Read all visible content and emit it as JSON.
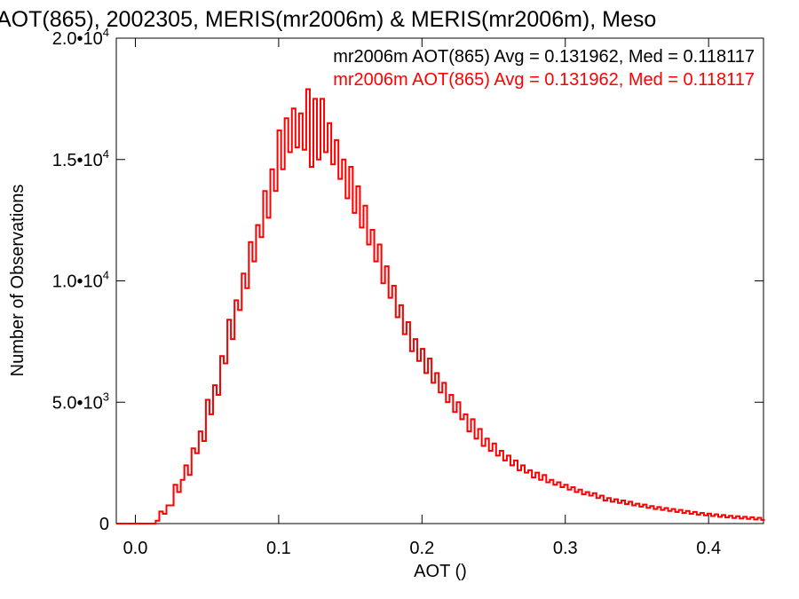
{
  "colors": {
    "series_black": "#000000",
    "series_red": "#ff0000",
    "axes": "#000000"
  },
  "chart_data": {
    "type": "histogram",
    "title": "AOT(865), 2002305, MERIS(mr2006m) & MERIS(mr2006m), Meso",
    "xlabel": "AOT ()",
    "ylabel": "Number of Observations",
    "xlim": [
      -0.0133,
      0.4383
    ],
    "ylim": [
      0,
      20000
    ],
    "grid": false,
    "bin_width": 0.0025,
    "first_bin_start": -0.0133,
    "x_ticks": [
      {
        "value": 0.0,
        "label": "0.0"
      },
      {
        "value": 0.1,
        "label": "0.1"
      },
      {
        "value": 0.2,
        "label": "0.2"
      },
      {
        "value": 0.3,
        "label": "0.3"
      },
      {
        "value": 0.4,
        "label": "0.4"
      }
    ],
    "y_ticks": [
      {
        "value": 0,
        "mant": "0",
        "exp": ""
      },
      {
        "value": 5000,
        "mant": "5.0•10",
        "exp": "3"
      },
      {
        "value": 10000,
        "mant": "1.0•10",
        "exp": "4"
      },
      {
        "value": 15000,
        "mant": "1.5•10",
        "exp": "4"
      },
      {
        "value": 20000,
        "mant": "2.0•10",
        "exp": "4"
      }
    ],
    "legend_placement": "top-right",
    "series": [
      {
        "name": "mr2006m AOT(865) Avg = 0.131962, Med = 0.118117",
        "color": "#000000",
        "values": [
          0,
          0,
          0,
          0,
          0,
          0,
          0,
          0,
          0,
          0,
          0,
          120,
          500,
          400,
          750,
          750,
          1600,
          1300,
          1800,
          2400,
          2000,
          3100,
          2900,
          3800,
          3400,
          5100,
          4500,
          5700,
          5300,
          6900,
          6600,
          8400,
          7600,
          9200,
          8800,
          10300,
          9700,
          11600,
          10800,
          12300,
          11800,
          13700,
          12600,
          14600,
          13700,
          16200,
          14600,
          16700,
          15300,
          17100,
          15500,
          16900,
          15400,
          17900,
          14700,
          17500,
          15000,
          17500,
          15300,
          16500,
          14800,
          15800,
          14200,
          15000,
          13400,
          14700,
          12800,
          13900,
          12200,
          13100,
          11500,
          12100,
          10800,
          11500,
          9900,
          10600,
          9300,
          9800,
          8500,
          9000,
          7800,
          8300,
          7100,
          7600,
          6700,
          7200,
          6200,
          6800,
          5800,
          6200,
          5400,
          5800,
          5000,
          5300,
          4600,
          5000,
          4300,
          4500,
          3800,
          4300,
          3500,
          3900,
          3200,
          3500,
          3000,
          3300,
          2800,
          3000,
          2600,
          2800,
          2400,
          2600,
          2200,
          2400,
          2100,
          2200,
          1900,
          2100,
          1800,
          2000,
          1700,
          1800,
          1600,
          1700,
          1500,
          1600,
          1400,
          1500,
          1300,
          1400,
          1200,
          1300,
          1150,
          1250,
          1050,
          1150,
          950,
          1050,
          900,
          1000,
          850,
          950,
          800,
          900,
          750,
          820,
          700,
          780,
          650,
          720,
          600,
          680,
          560,
          640,
          520,
          600,
          480,
          560,
          440,
          520,
          400,
          480,
          370,
          440,
          340,
          410,
          310,
          380,
          280,
          350,
          250,
          320,
          230,
          300,
          210,
          280,
          190,
          260,
          170,
          240,
          150
        ]
      },
      {
        "name": "mr2006m AOT(865) Avg = 0.131962, Med = 0.118117",
        "color": "#ff0000",
        "values": [
          0,
          0,
          0,
          0,
          0,
          0,
          0,
          0,
          0,
          0,
          0,
          120,
          500,
          400,
          750,
          750,
          1600,
          1300,
          1800,
          2400,
          2000,
          3100,
          2900,
          3800,
          3400,
          5100,
          4500,
          5700,
          5300,
          6900,
          6600,
          8400,
          7600,
          9200,
          8800,
          10300,
          9700,
          11600,
          10800,
          12300,
          11800,
          13700,
          12600,
          14600,
          13700,
          16200,
          14600,
          16700,
          15300,
          17100,
          15500,
          16900,
          15400,
          17900,
          14700,
          17500,
          15000,
          17500,
          15300,
          16500,
          14800,
          15800,
          14200,
          15000,
          13400,
          14700,
          12800,
          13900,
          12200,
          13100,
          11500,
          12100,
          10800,
          11500,
          9900,
          10600,
          9300,
          9800,
          8500,
          9000,
          7800,
          8300,
          7100,
          7600,
          6700,
          7200,
          6200,
          6800,
          5800,
          6200,
          5400,
          5800,
          5000,
          5300,
          4600,
          5000,
          4300,
          4500,
          3800,
          4300,
          3500,
          3900,
          3200,
          3500,
          3000,
          3300,
          2800,
          3000,
          2600,
          2800,
          2400,
          2600,
          2200,
          2400,
          2100,
          2200,
          1900,
          2100,
          1800,
          2000,
          1700,
          1800,
          1600,
          1700,
          1500,
          1600,
          1400,
          1500,
          1300,
          1400,
          1200,
          1300,
          1150,
          1250,
          1050,
          1150,
          950,
          1050,
          900,
          1000,
          850,
          950,
          800,
          900,
          750,
          820,
          700,
          780,
          650,
          720,
          600,
          680,
          560,
          640,
          520,
          600,
          480,
          560,
          440,
          520,
          400,
          480,
          370,
          440,
          340,
          410,
          310,
          380,
          280,
          350,
          250,
          320,
          230,
          300,
          210,
          280,
          190,
          260,
          170,
          240,
          150
        ]
      }
    ]
  }
}
